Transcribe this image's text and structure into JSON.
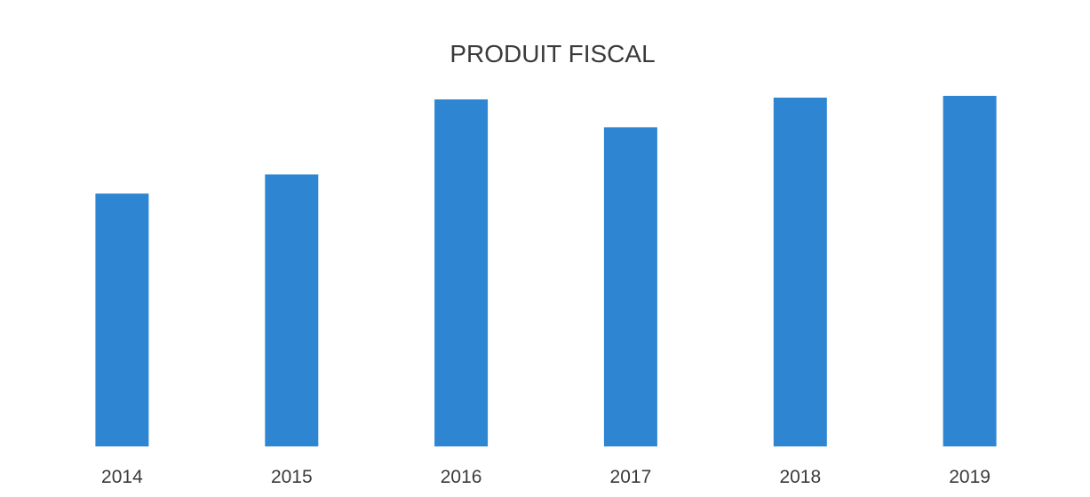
{
  "chart_data": {
    "type": "bar",
    "title": "PRODUIT FISCAL",
    "xlabel": "",
    "ylabel": "",
    "categories": [
      "2014",
      "2015",
      "2016",
      "2017",
      "2018",
      "2019"
    ],
    "values": [
      72.5,
      78,
      99.5,
      91.5,
      100,
      100.5
    ],
    "ylim": [
      0,
      100
    ],
    "grid": false,
    "legend": "none",
    "colors": {
      "bar": "#2e86d2",
      "text": "#3a3a3a",
      "background": "#ffffff"
    }
  }
}
